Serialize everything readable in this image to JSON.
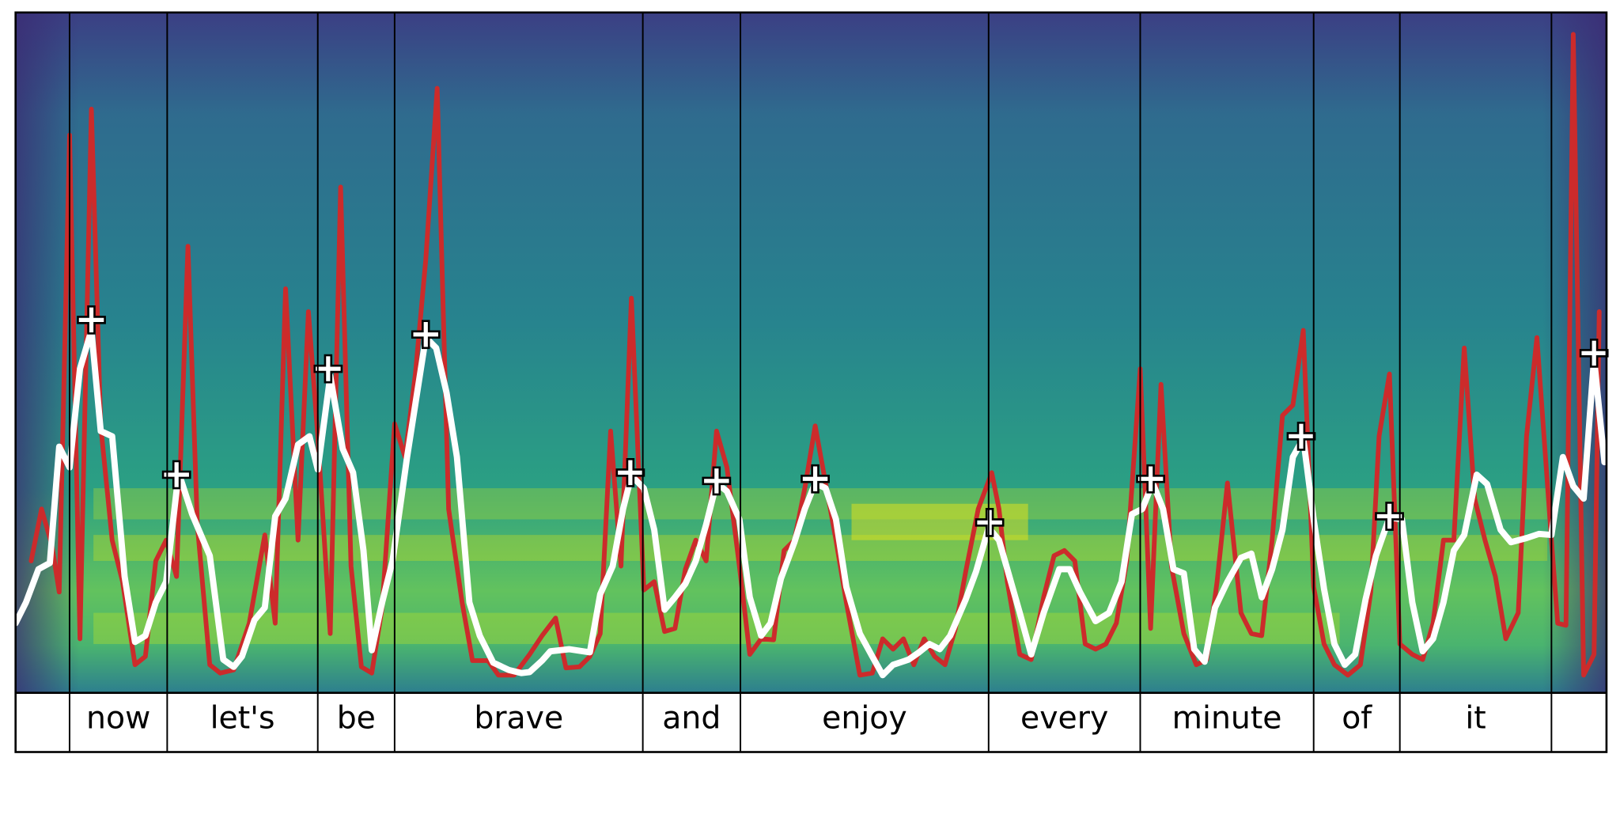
{
  "chart_data": {
    "type": "line",
    "xlim": [
      15,
      1547
    ],
    "ylim": [
      0,
      655
    ],
    "segments": {
      "labels": [
        null,
        "now",
        "let's",
        "be",
        "brave",
        "and",
        "enjoy",
        "every",
        "minute",
        "of",
        "it",
        null
      ],
      "edges": [
        15,
        67,
        161,
        306,
        380,
        619,
        713,
        952,
        1098,
        1265,
        1348,
        1494,
        1547
      ]
    },
    "series": [
      {
        "color": "#cc2b2b",
        "x": [
          30,
          40,
          50,
          57,
          67,
          77,
          88,
          97,
          108,
          118,
          130,
          140,
          150,
          160,
          170,
          181,
          190,
          202,
          212,
          225,
          240,
          255,
          265,
          275,
          287,
          297,
          306,
          318,
          328,
          338,
          348,
          358,
          368,
          380,
          390,
          400,
          410,
          421,
          432,
          445,
          455,
          470,
          480,
          495,
          510,
          522,
          535,
          545,
          558,
          568,
          578,
          588,
          598,
          608,
          620,
          630,
          640,
          650,
          660,
          670,
          680,
          690,
          700,
          712,
          722,
          733,
          745,
          755,
          765,
          775,
          785,
          795,
          805,
          815,
          828,
          840,
          850,
          860,
          870,
          880,
          890,
          900,
          910,
          920,
          930,
          942,
          955,
          962,
          970,
          982,
          993,
          1005,
          1015,
          1025,
          1035,
          1045,
          1055,
          1065,
          1075,
          1085,
          1098,
          1108,
          1118,
          1128,
          1140,
          1152,
          1162,
          1172,
          1182,
          1195,
          1205,
          1215,
          1225,
          1235,
          1245,
          1255,
          1265,
          1275,
          1285,
          1298,
          1310,
          1320,
          1328,
          1338,
          1348,
          1360,
          1370,
          1380,
          1390,
          1400,
          1410,
          1420,
          1430,
          1440,
          1450,
          1462,
          1470,
          1480,
          1494,
          1500,
          1508,
          1515,
          1525,
          1535,
          1540
        ],
        "values": [
          127,
          177,
          142,
          97,
          537,
          52,
          562,
          257,
          147,
          107,
          27,
          35,
          127,
          147,
          112,
          430,
          162,
          27,
          19,
          22,
          67,
          152,
          67,
          389,
          147,
          367,
          247,
          57,
          487,
          122,
          25,
          19,
          82,
          259,
          227,
          307,
          417,
          582,
          177,
          87,
          31,
          31,
          17,
          17,
          37,
          55,
          72,
          24,
          25,
          35,
          57,
          252,
          122,
          380,
          99,
          107,
          59,
          62,
          119,
          147,
          127,
          252,
          217,
          122,
          37,
          52,
          51,
          137,
          147,
          197,
          257,
          202,
          147,
          87,
          17,
          19,
          52,
          42,
          52,
          27,
          52,
          35,
          27,
          62,
          117,
          177,
          212,
          177,
          107,
          37,
          32,
          92,
          132,
          137,
          127,
          47,
          42,
          47,
          67,
          127,
          312,
          62,
          297,
          122,
          57,
          27,
          32,
          107,
          202,
          77,
          57,
          55,
          147,
          267,
          277,
          349,
          102,
          47,
          27,
          17,
          27,
          97,
          247,
          307,
          47,
          37,
          32,
          67,
          147,
          147,
          332,
          187,
          147,
          112,
          52,
          77,
          247,
          342,
          147,
          67,
          65,
          634,
          17,
          37,
          367
        ]
      },
      {
        "color": "#ffffff",
        "x": [
          15,
          25,
          37,
          48,
          57,
          67,
          77,
          88,
          97,
          108,
          120,
          130,
          140,
          150,
          160,
          172,
          185,
          202,
          215,
          225,
          233,
          245,
          255,
          265,
          275,
          287,
          298,
          306,
          318,
          330,
          340,
          350,
          358,
          368,
          378,
          392,
          410,
          420,
          430,
          440,
          452,
          462,
          475,
          490,
          502,
          510,
          522,
          530,
          548,
          568,
          578,
          590,
          600,
          608,
          620,
          630,
          640,
          650,
          660,
          670,
          680,
          690,
          700,
          712,
          722,
          733,
          742,
          752,
          765,
          775,
          785,
          795,
          805,
          815,
          828,
          840,
          850,
          860,
          875,
          885,
          895,
          905,
          915,
          930,
          940,
          952,
          962,
          970,
          982,
          993,
          1005,
          1020,
          1030,
          1040,
          1055,
          1068,
          1080,
          1090,
          1100,
          1110,
          1120,
          1130,
          1140,
          1150,
          1160,
          1170,
          1182,
          1195,
          1205,
          1215,
          1225,
          1235,
          1245,
          1255,
          1265,
          1275,
          1285,
          1295,
          1305,
          1315,
          1325,
          1338,
          1350,
          1360,
          1370,
          1380,
          1390,
          1400,
          1410,
          1422,
          1432,
          1445,
          1455,
          1470,
          1482,
          1494,
          1505,
          1515,
          1525,
          1535,
          1545
        ],
        "values": [
          67,
          87,
          119,
          125,
          237,
          217,
          312,
          349,
          252,
          247,
          112,
          49,
          55,
          87,
          107,
          212,
          172,
          132,
          32,
          25,
          35,
          70,
          82,
          170,
          187,
          239,
          247,
          215,
          305,
          235,
          212,
          137,
          41,
          87,
          127,
          227,
          342,
          332,
          289,
          227,
          87,
          55,
          29,
          22,
          19,
          20,
          31,
          40,
          42,
          39,
          95,
          122,
          177,
          209,
          197,
          157,
          80,
          92,
          105,
          127,
          162,
          202,
          194,
          167,
          92,
          55,
          67,
          110,
          145,
          177,
          202,
          197,
          167,
          102,
          57,
          35,
          17,
          27,
          32,
          39,
          47,
          42,
          55,
          90,
          117,
          159,
          147,
          119,
          77,
          37,
          77,
          119,
          119,
          97,
          69,
          77,
          107,
          172,
          177,
          202,
          177,
          119,
          115,
          42,
          30,
          82,
          107,
          130,
          134,
          92,
          119,
          157,
          227,
          245,
          167,
          100,
          47,
          27,
          37,
          90,
          132,
          169,
          167,
          87,
          40,
          52,
          87,
          137,
          152,
          210,
          201,
          157,
          145,
          149,
          153,
          152,
          227,
          199,
          187,
          322,
          222
        ]
      }
    ],
    "peaks": {
      "x": [
        88,
        170,
        316,
        410,
        607,
        690,
        785,
        953,
        1108,
        1253,
        1338,
        1535
      ],
      "values": [
        359,
        210,
        312,
        345,
        212,
        204,
        206,
        164,
        206,
        247,
        170,
        327
      ]
    }
  }
}
